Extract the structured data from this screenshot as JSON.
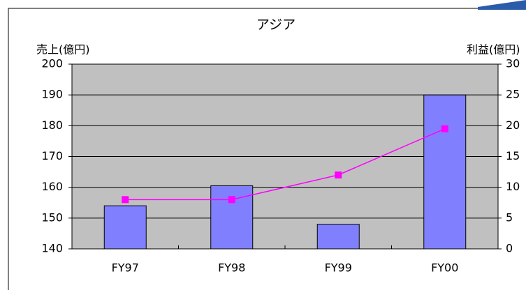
{
  "chart_data": {
    "type": "bar_line",
    "title": "アジア",
    "y_label": "売上(億円)",
    "y2_label": "利益(億円)",
    "categories": [
      "FY97",
      "FY98",
      "FY99",
      "FY00"
    ],
    "series": [
      {
        "name": "売上",
        "type": "bar",
        "color": "#8080ff",
        "values": [
          154,
          160.5,
          148,
          190
        ]
      },
      {
        "name": "利益",
        "type": "line",
        "axis": "y2",
        "color": "#ff00ff",
        "values": [
          8,
          8,
          12,
          19.5
        ]
      }
    ],
    "ylim": [
      140,
      200
    ],
    "yticks": [
      140,
      150,
      160,
      170,
      180,
      190,
      200
    ],
    "y2lim": [
      0,
      30
    ],
    "y2ticks": [
      0,
      5,
      10,
      15,
      20,
      25,
      30
    ],
    "grid": true
  }
}
